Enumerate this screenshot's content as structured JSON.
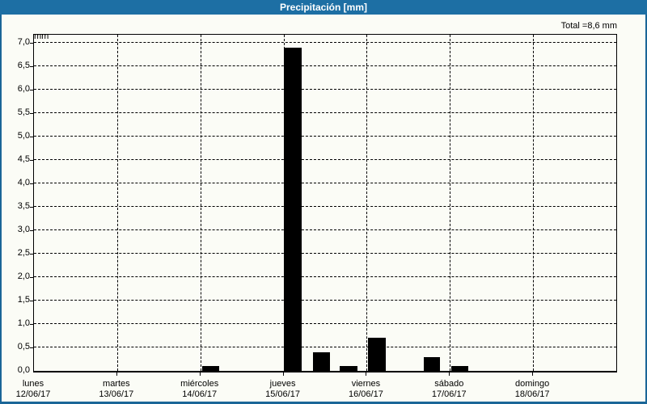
{
  "window": {
    "title": "Precipitación [mm]"
  },
  "colors": {
    "header_bg": "#1d6fa4",
    "window_border": "#1a6698",
    "background": "#fbfcf6",
    "bar": "#000000",
    "grid": "#000000",
    "title_text": "#ffffff"
  },
  "chart_data": {
    "type": "bar",
    "title": "Precipitación [mm]",
    "ylabel": "mm",
    "total_label": "Total =8,6 mm",
    "total_mm": 8.6,
    "ylim": [
      0,
      7.17
    ],
    "ytick_step": 0.5,
    "grid": "dashed",
    "yticks": [
      {
        "value": 7.0,
        "label": "7,0"
      },
      {
        "value": 6.5,
        "label": "6,5"
      },
      {
        "value": 6.0,
        "label": "6,0"
      },
      {
        "value": 5.5,
        "label": "5,5"
      },
      {
        "value": 5.0,
        "label": "5,0"
      },
      {
        "value": 4.5,
        "label": "4,5"
      },
      {
        "value": 4.0,
        "label": "4,0"
      },
      {
        "value": 3.5,
        "label": "3,5"
      },
      {
        "value": 3.0,
        "label": "3,0"
      },
      {
        "value": 2.5,
        "label": "2,5"
      },
      {
        "value": 2.0,
        "label": "2,0"
      },
      {
        "value": 1.5,
        "label": "1,5"
      },
      {
        "value": 1.0,
        "label": "1,0"
      },
      {
        "value": 0.5,
        "label": "0,5"
      },
      {
        "value": 0.0,
        "label": "0,0"
      }
    ],
    "days": [
      {
        "name": "lunes",
        "date": "12/06/17",
        "daily_total_mm": 0.0
      },
      {
        "name": "martes",
        "date": "13/06/17",
        "daily_total_mm": 0.0
      },
      {
        "name": "miércoles",
        "date": "14/06/17",
        "daily_total_mm": 0.1
      },
      {
        "name": "jueves",
        "date": "15/06/17",
        "daily_total_mm": 7.4
      },
      {
        "name": "viernes",
        "date": "16/06/17",
        "daily_total_mm": 1.0
      },
      {
        "name": "sábado",
        "date": "17/06/17",
        "daily_total_mm": 0.1
      },
      {
        "name": "domingo",
        "date": "18/06/17",
        "daily_total_mm": 0.0
      }
    ],
    "bars": [
      {
        "day": "miércoles",
        "value_mm": 0.1,
        "x_frac": 0.2889,
        "w_frac": 0.0292
      },
      {
        "day": "jueves",
        "value_mm": 6.9,
        "x_frac": 0.4292,
        "w_frac": 0.0306
      },
      {
        "day": "jueves",
        "value_mm": 0.4,
        "x_frac": 0.4792,
        "w_frac": 0.0292
      },
      {
        "day": "jueves",
        "value_mm": 0.1,
        "x_frac": 0.525,
        "w_frac": 0.0306
      },
      {
        "day": "viernes",
        "value_mm": 0.7,
        "x_frac": 0.5736,
        "w_frac": 0.0306
      },
      {
        "day": "viernes",
        "value_mm": 0.3,
        "x_frac": 0.6694,
        "w_frac": 0.0278
      },
      {
        "day": "sábado",
        "value_mm": 0.1,
        "x_frac": 0.7167,
        "w_frac": 0.0292
      }
    ]
  }
}
